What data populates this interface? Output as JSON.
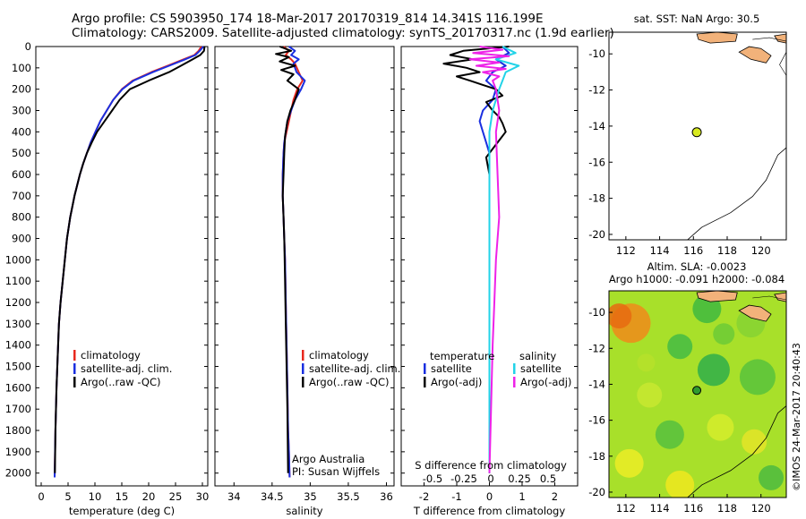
{
  "header": {
    "line1": "Argo profile: CS 5903950_174 18-Mar-2017 20170319_814 14.341S 116.199E",
    "line2": "Climatology: CARS2009. Satellite-adjusted climatology: synTS_20170317.nc (1.9d earlier)"
  },
  "colors": {
    "climatology": "#e8281e",
    "satellite": "#1a2fe0",
    "argo": "#000000",
    "sal_satellite": "#22d3e8",
    "sal_argo": "#ee22e8",
    "land": "#f2b27a"
  },
  "chart_data": [
    {
      "type": "line",
      "id": "temperature",
      "xlabel": "temperature (deg C)",
      "xlim": [
        -1,
        31
      ],
      "ylim": [
        0,
        2060
      ],
      "y_inverted": true,
      "xticks": [
        0,
        5,
        10,
        15,
        20,
        25,
        30
      ],
      "yticks": [
        0,
        100,
        200,
        300,
        400,
        500,
        600,
        700,
        800,
        900,
        1000,
        1100,
        1200,
        1300,
        1400,
        1500,
        1600,
        1700,
        1800,
        1900,
        2000
      ],
      "legend": [
        "climatology",
        "satellite-adj. clim.",
        "Argo(..raw -QC)"
      ],
      "series": [
        {
          "name": "climatology",
          "color_key": "climatology",
          "x": [
            29.8,
            29.3,
            28.5,
            26.5,
            23.5,
            20.5,
            17,
            15,
            13.4,
            12.2,
            11,
            10.1,
            9.2,
            8.5,
            7.8,
            7.2,
            6.7,
            6.2,
            5.8,
            5.4,
            5.1,
            4.8,
            4.6,
            4.4,
            4.2,
            4,
            3.8,
            3.6,
            3.45,
            3.3,
            3.15,
            3,
            2.85,
            2.75,
            2.65,
            2.5
          ],
          "y": [
            0,
            20,
            40,
            60,
            90,
            120,
            160,
            200,
            250,
            300,
            350,
            400,
            450,
            500,
            550,
            600,
            650,
            700,
            750,
            800,
            850,
            900,
            950,
            1000,
            1050,
            1100,
            1150,
            1200,
            1250,
            1300,
            1400,
            1500,
            1600,
            1700,
            1800,
            2020
          ]
        },
        {
          "name": "satellite-adj. clim.",
          "color_key": "satellite",
          "x": [
            30.2,
            29.5,
            28.7,
            26.8,
            23.8,
            20.8,
            17.2,
            15.1,
            13.4,
            12.2,
            11,
            10.1,
            9.2,
            8.5,
            7.8,
            7.2,
            6.7,
            6.2,
            5.8,
            5.4,
            5.1,
            4.8,
            4.6,
            4.4,
            4.2,
            4,
            3.8,
            3.6,
            3.45,
            3.3,
            3.15,
            3,
            2.85,
            2.75,
            2.65,
            2.5
          ],
          "y": [
            0,
            20,
            40,
            60,
            90,
            120,
            160,
            200,
            250,
            300,
            350,
            400,
            450,
            500,
            550,
            600,
            650,
            700,
            750,
            800,
            850,
            900,
            950,
            1000,
            1050,
            1100,
            1150,
            1200,
            1250,
            1300,
            1400,
            1500,
            1600,
            1700,
            1800,
            2020
          ]
        },
        {
          "name": "Argo(..raw -QC)",
          "color_key": "argo",
          "x": [
            30.4,
            30.3,
            29.6,
            28.2,
            26,
            23.8,
            20,
            16.5,
            14.6,
            13.2,
            11.8,
            10.4,
            9.4,
            8.5,
            7.8,
            7.2,
            6.7,
            6.2,
            5.8,
            5.4,
            5.1,
            4.8,
            4.6,
            4.4,
            4.2,
            4,
            3.8,
            3.6,
            3.45,
            3.3,
            3.15,
            3,
            2.85,
            2.75,
            2.65,
            2.55
          ],
          "y": [
            0,
            20,
            40,
            60,
            90,
            120,
            160,
            200,
            250,
            300,
            350,
            400,
            450,
            500,
            550,
            600,
            650,
            700,
            750,
            800,
            850,
            900,
            950,
            1000,
            1050,
            1100,
            1150,
            1200,
            1250,
            1300,
            1400,
            1500,
            1600,
            1700,
            1800,
            2000
          ]
        }
      ]
    },
    {
      "type": "line",
      "id": "salinity",
      "xlabel": "salinity",
      "xlim": [
        33.75,
        36.1
      ],
      "ylim": [
        0,
        2060
      ],
      "y_inverted": true,
      "xticks": [
        34,
        34.5,
        35,
        35.5,
        36
      ],
      "legend": [
        "climatology",
        "satellite-adj. clim.",
        "Argo(..raw -QC)"
      ],
      "annotation_lines": [
        "Argo Australia",
        "PI: Susan Wijffels"
      ],
      "series": [
        {
          "name": "climatology",
          "color_key": "climatology",
          "x": [
            34.65,
            34.72,
            34.68,
            34.75,
            34.8,
            34.85,
            34.9,
            34.83,
            34.78,
            34.75,
            34.72,
            34.69,
            34.66,
            34.65,
            34.64,
            34.64,
            34.65,
            34.66,
            34.67,
            34.68,
            34.69,
            34.7,
            34.71,
            34.72,
            34.73
          ],
          "y": [
            0,
            20,
            40,
            60,
            80,
            120,
            160,
            200,
            250,
            300,
            350,
            400,
            450,
            500,
            600,
            700,
            800,
            900,
            1000,
            1200,
            1400,
            1600,
            1800,
            1900,
            2020
          ]
        },
        {
          "name": "satellite-adj. clim.",
          "color_key": "satellite",
          "x": [
            34.72,
            34.8,
            34.75,
            34.85,
            34.78,
            34.82,
            34.93,
            34.88,
            34.8,
            34.75,
            34.7,
            34.68,
            34.66,
            34.65,
            34.64,
            34.64,
            34.65,
            34.66,
            34.67,
            34.68,
            34.69,
            34.7,
            34.71,
            34.72,
            34.73
          ],
          "y": [
            0,
            20,
            40,
            60,
            80,
            120,
            160,
            200,
            250,
            300,
            350,
            400,
            450,
            500,
            600,
            700,
            800,
            900,
            1000,
            1200,
            1400,
            1600,
            1800,
            1900,
            2020
          ]
        },
        {
          "name": "Argo(..raw -QC)",
          "color_key": "argo",
          "x": [
            34.6,
            34.75,
            34.55,
            34.72,
            34.6,
            34.8,
            34.62,
            34.78,
            34.7,
            34.85,
            34.8,
            34.74,
            34.7,
            34.67,
            34.66,
            34.65,
            34.64,
            34.65,
            34.66,
            34.67,
            34.68,
            34.69,
            34.7,
            34.71
          ],
          "y": [
            0,
            20,
            35,
            50,
            70,
            90,
            110,
            130,
            160,
            200,
            250,
            300,
            350,
            420,
            500,
            600,
            700,
            800,
            900,
            1100,
            1300,
            1500,
            1700,
            2000
          ]
        }
      ]
    },
    {
      "type": "line",
      "id": "difference",
      "xlabel": "T difference from climatology",
      "xlabel_top": "S difference from climatology",
      "xlim": [
        -2.7,
        2.7
      ],
      "ylim": [
        0,
        2060
      ],
      "y_inverted": true,
      "xticks": [
        -2,
        -1,
        0,
        1,
        2
      ],
      "xticks_top": [
        -0.5,
        -0.25,
        0,
        0.25,
        0.5
      ],
      "legend_t_title": "temperature",
      "legend_s_title": "salinity",
      "legend": [
        "satellite",
        "Argo(-adj)",
        "satellite",
        "Argo(-adj)"
      ],
      "series": [
        {
          "name": "T satellite",
          "color_key": "satellite",
          "x": [
            0.4,
            0.6,
            0.2,
            0.5,
            0.1,
            -0.1,
            0.2,
            0.1,
            -0.2,
            -0.3,
            -0.2,
            -0.1,
            0,
            0,
            0,
            0,
            0,
            0,
            0,
            0
          ],
          "y": [
            0,
            30,
            60,
            90,
            120,
            160,
            200,
            250,
            300,
            350,
            400,
            450,
            500,
            600,
            800,
            1000,
            1300,
            1600,
            1800,
            2000
          ]
        },
        {
          "name": "T Argo(-adj)",
          "color_key": "argo",
          "x": [
            0.6,
            -0.8,
            -1.2,
            -0.5,
            -1.4,
            -0.7,
            -0.3,
            -1.0,
            -0.6,
            -0.2,
            0.2,
            0.4,
            -0.1,
            0.1,
            0.3,
            0.4,
            0.5,
            0.3,
            0.1,
            -0.1,
            0,
            0,
            0,
            0,
            0,
            0
          ],
          "y": [
            0,
            20,
            40,
            60,
            80,
            100,
            120,
            140,
            160,
            180,
            200,
            230,
            260,
            300,
            330,
            360,
            400,
            440,
            480,
            520,
            600,
            800,
            1000,
            1300,
            1600,
            2000
          ]
        },
        {
          "name": "S satellite",
          "color_key": "sal_satellite",
          "x": [
            0.4,
            0.8,
            0.2,
            0.9,
            0.5,
            0.4,
            0.3,
            0.2,
            0.1,
            0.05,
            0,
            0,
            0,
            0,
            0,
            0,
            0
          ],
          "y": [
            0,
            30,
            60,
            90,
            120,
            160,
            200,
            250,
            300,
            350,
            400,
            500,
            700,
            1000,
            1300,
            1600,
            2000
          ]
        },
        {
          "name": "S Argo(-adj)",
          "color_key": "sal_argo",
          "x": [
            -0.3,
            0.4,
            -0.5,
            0.6,
            -0.6,
            0.3,
            -0.4,
            0.5,
            -0.2,
            0.3,
            0.1,
            0.2,
            0.3,
            0.2,
            0.25,
            0.3,
            0.2,
            0.15,
            0.1,
            0.05,
            0
          ],
          "y": [
            0,
            15,
            30,
            45,
            60,
            75,
            90,
            105,
            120,
            140,
            160,
            200,
            300,
            400,
            600,
            800,
            1000,
            1200,
            1400,
            1700,
            2000
          ]
        }
      ]
    },
    {
      "type": "map",
      "id": "sst_map",
      "title": "sat. SST: NaN  Argo: 30.5",
      "xlim": [
        111,
        121.5
      ],
      "ylim": [
        -20.3,
        -8.8
      ],
      "xticks": [
        112,
        114,
        116,
        118,
        120
      ],
      "yticks": [
        -10,
        -12,
        -14,
        -16,
        -18,
        -20
      ],
      "marker": {
        "lon": 116.2,
        "lat": -14.34,
        "color": "#d8ea20"
      }
    },
    {
      "type": "heatmap",
      "id": "sla_map",
      "title": "Altim. SLA: -0.0023",
      "subtitle": "Argo h1000: -0.091  h2000: -0.084",
      "xlim": [
        111,
        121.5
      ],
      "ylim": [
        -20.3,
        -8.8
      ],
      "xticks": [
        112,
        114,
        116,
        118,
        120
      ],
      "yticks": [
        -10,
        -12,
        -14,
        -16,
        -18,
        -20
      ],
      "marker": {
        "lon": 116.2,
        "lat": -14.34,
        "color": "#2f9a2f"
      }
    }
  ],
  "credit": "©IMOS 24-Mar-2017 20:40:43"
}
